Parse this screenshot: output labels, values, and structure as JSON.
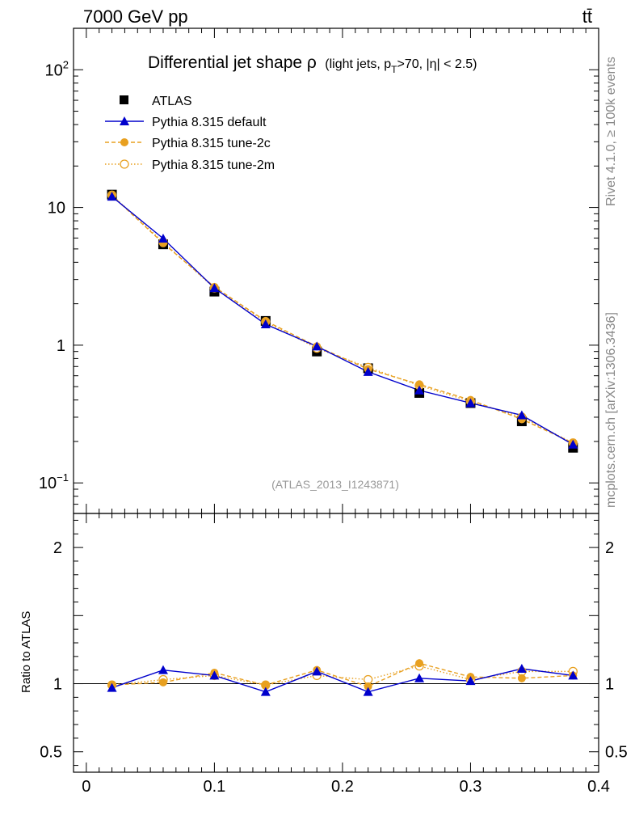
{
  "header": {
    "energy_label": "7000 GeV pp",
    "process_label": "tt̄"
  },
  "side_labels": {
    "rivet": "Rivet 4.1.0, ≥ 100k events",
    "mcplots": "mcplots.cern.ch [arXiv:1306.3436]"
  },
  "colors": {
    "atlas": "#000000",
    "default": "#0000cc",
    "tune2c": "#e8a020",
    "tune2m": "#e8a020",
    "watermark": "#999999"
  },
  "chart_data": [
    {
      "type": "line",
      "panel": "main",
      "title_main": "Differential jet shape ρ",
      "title_sub": "(light jets, p",
      "title_sub_index": "T",
      "title_sub_rest": ">70, |η| < 2.5)",
      "watermark": "(ATLAS_2013_I1243871)",
      "yscale": "log",
      "ylim": [
        0.06,
        200
      ],
      "xlim": [
        -0.01,
        0.4
      ],
      "ytick_labels": [
        {
          "value": 100,
          "base": "10",
          "exp": "2"
        },
        {
          "value": 10,
          "base": "10",
          "exp": ""
        },
        {
          "value": 1,
          "base": "1",
          "exp": ""
        },
        {
          "value": 0.1,
          "base": "10",
          "exp": "−1"
        }
      ],
      "legend_position": "top-left",
      "x": [
        0.02,
        0.06,
        0.1,
        0.14,
        0.18,
        0.22,
        0.26,
        0.3,
        0.34,
        0.38
      ],
      "series": [
        {
          "key": "atlas",
          "name": "ATLAS",
          "style": "data",
          "values": [
            12.4,
            5.4,
            2.45,
            1.5,
            0.9,
            0.68,
            0.45,
            0.38,
            0.28,
            0.18
          ]
        },
        {
          "key": "default",
          "name": "Pythia 8.315 default",
          "style": "solid",
          "values": [
            12.0,
            5.95,
            2.6,
            1.42,
            0.98,
            0.64,
            0.47,
            0.38,
            0.31,
            0.19
          ]
        },
        {
          "key": "tune2c",
          "name": "Pythia 8.315 tune-2c",
          "style": "dashed",
          "values": [
            12.2,
            5.5,
            2.65,
            1.5,
            0.98,
            0.67,
            0.52,
            0.4,
            0.29,
            0.195
          ]
        },
        {
          "key": "tune2m",
          "name": "Pythia 8.315 tune-2m",
          "style": "dotted",
          "values": [
            12.3,
            5.6,
            2.6,
            1.48,
            0.95,
            0.69,
            0.51,
            0.39,
            0.3,
            0.195
          ]
        }
      ]
    },
    {
      "type": "line",
      "panel": "ratio",
      "ylabel": "Ratio to ATLAS",
      "ylim": [
        0.35,
        2.25
      ],
      "xlim": [
        -0.01,
        0.4
      ],
      "ytick_labels": [
        {
          "value": 2,
          "label": "2"
        },
        {
          "value": 1,
          "label": "1"
        },
        {
          "value": 0.5,
          "label": "0.5"
        }
      ],
      "xtick_labels": [
        {
          "value": 0,
          "label": "0"
        },
        {
          "value": 0.1,
          "label": "0.1"
        },
        {
          "value": 0.2,
          "label": "0.2"
        },
        {
          "value": 0.3,
          "label": "0.3"
        },
        {
          "value": 0.4,
          "label": "0.4"
        }
      ],
      "x": [
        0.02,
        0.06,
        0.1,
        0.14,
        0.18,
        0.22,
        0.26,
        0.3,
        0.34,
        0.38
      ],
      "series": [
        {
          "key": "default",
          "name": "Pythia 8.315 default",
          "style": "solid",
          "values": [
            0.97,
            1.1,
            1.06,
            0.94,
            1.09,
            0.94,
            1.04,
            1.02,
            1.11,
            1.06
          ],
          "errors": [
            0.01,
            0.01,
            0.01,
            0.01,
            0.02,
            0.02,
            0.02,
            0.02,
            0.03,
            0.02
          ]
        },
        {
          "key": "tune2c",
          "name": "Pythia 8.315 tune-2c",
          "style": "dashed",
          "values": [
            0.99,
            1.01,
            1.08,
            0.99,
            1.1,
            0.98,
            1.15,
            1.05,
            1.04,
            1.06
          ],
          "errors": [
            0.01,
            0.01,
            0.02,
            0.01,
            0.02,
            0.02,
            0.03,
            0.03,
            0.03,
            0.03
          ]
        },
        {
          "key": "tune2m",
          "name": "Pythia 8.315 tune-2m",
          "style": "dotted",
          "values": [
            0.99,
            1.03,
            1.06,
            0.99,
            1.06,
            1.03,
            1.13,
            1.03,
            1.09,
            1.09
          ],
          "errors": [
            0.01,
            0.01,
            0.01,
            0.01,
            0.02,
            0.02,
            0.03,
            0.03,
            0.03,
            0.03
          ]
        }
      ]
    }
  ]
}
